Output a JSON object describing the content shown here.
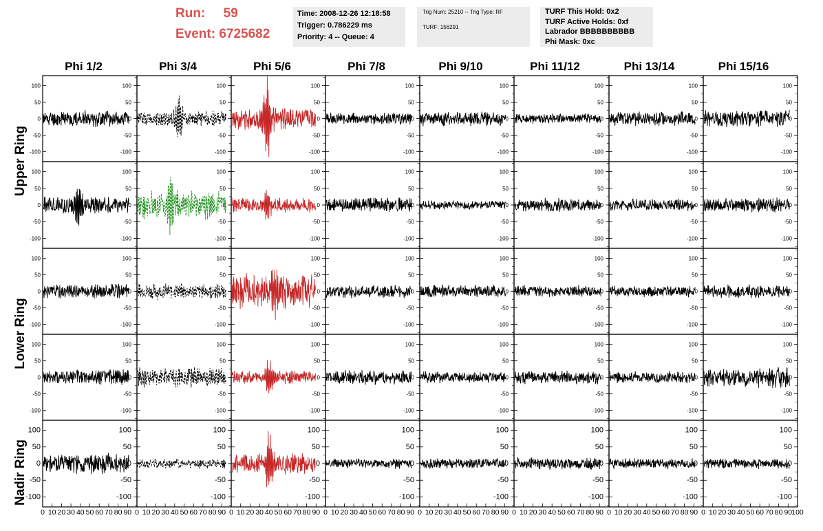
{
  "header": {
    "run_label": "Run:     59",
    "event_label": "Event: 6725682"
  },
  "info_time": {
    "time": "Time: 2008-12-26 12:18:58",
    "trigger": "Trigger: 0.786229 ms",
    "priority": "Priority: 4 -- Queue: 4"
  },
  "info_trig": {
    "trig": "Trig Num: 25210 -- Trig Type: RF",
    "turf": "TURF: 156291"
  },
  "info_turf": {
    "hold": "TURF This Hold: 0x2",
    "active": "TURF Active Holds: 0xf",
    "labrador": "Labrador BBBBBBBBBB",
    "phimask": "Phi Mask: 0xc"
  },
  "columns": [
    "Phi 1/2",
    "Phi 3/4",
    "Phi 5/6",
    "Phi 7/8",
    "Phi 9/10",
    "Phi 11/12",
    "Phi 13/14",
    "Phi 15/16"
  ],
  "rows": [
    "Upper Ring",
    "Lower Ring",
    "Nadir Ring"
  ],
  "colors": {
    "normal": "#000000",
    "triggered_phi": "#c62828",
    "dashed": "#000000",
    "green": "#1a8f1a"
  },
  "chart_data": {
    "type": "line",
    "description_axes": "small multiples grid of waveforms, 5 panel rows x 8 columns",
    "ylim": [
      -130,
      130
    ],
    "xlim": [
      0,
      100
    ],
    "yticks": [
      -100,
      -50,
      0,
      50,
      100
    ],
    "xticks": [
      0,
      10,
      20,
      30,
      40,
      50,
      60,
      70,
      80,
      90,
      100
    ],
    "xtick_labels_bottom": "0 10 20 30 40 50 60 70 80 90 10",
    "last_xtick_label": "100",
    "panel_rows": [
      {
        "row_index": 0,
        "ring": "Upper Ring"
      },
      {
        "row_index": 1,
        "ring": "Upper Ring"
      },
      {
        "row_index": 2,
        "ring": "Lower Ring"
      },
      {
        "row_index": 3,
        "ring": "Lower Ring"
      },
      {
        "row_index": 4,
        "ring": "Nadir Ring"
      }
    ],
    "panels": [
      {
        "row": 0,
        "col": 0,
        "style": "normal",
        "amp": 22,
        "seed": 11,
        "pulse": 0
      },
      {
        "row": 0,
        "col": 1,
        "style": "dashed",
        "amp": 22,
        "seed": 12,
        "pulse": 55,
        "pulse_x": 45,
        "xmax": 95
      },
      {
        "row": 0,
        "col": 2,
        "style": "triggered_phi",
        "amp": 30,
        "seed": 13,
        "pulse": 120,
        "pulse_x": 38,
        "xmax": 90
      },
      {
        "row": 0,
        "col": 3,
        "style": "normal",
        "amp": 16,
        "seed": 14,
        "pulse": 0
      },
      {
        "row": 0,
        "col": 4,
        "style": "normal",
        "amp": 20,
        "seed": 15,
        "pulse": 0
      },
      {
        "row": 0,
        "col": 5,
        "style": "normal",
        "amp": 14,
        "seed": 16,
        "pulse": 0
      },
      {
        "row": 0,
        "col": 6,
        "style": "normal",
        "amp": 20,
        "seed": 17,
        "pulse": 0
      },
      {
        "row": 0,
        "col": 7,
        "style": "normal",
        "amp": 24,
        "seed": 18,
        "pulse": 0
      },
      {
        "row": 1,
        "col": 0,
        "style": "normal",
        "amp": 24,
        "seed": 21,
        "pulse": 55,
        "pulse_x": 38
      },
      {
        "row": 1,
        "col": 1,
        "style": "green",
        "amp": 40,
        "seed": 22,
        "pulse": 85,
        "pulse_x": 35,
        "xmax": 95
      },
      {
        "row": 1,
        "col": 2,
        "style": "triggered_phi",
        "amp": 22,
        "seed": 23,
        "pulse": 45,
        "pulse_x": 38,
        "xmax": 90
      },
      {
        "row": 1,
        "col": 3,
        "style": "normal",
        "amp": 20,
        "seed": 24,
        "pulse": 0
      },
      {
        "row": 1,
        "col": 4,
        "style": "normal",
        "amp": 12,
        "seed": 25,
        "pulse": 0
      },
      {
        "row": 1,
        "col": 5,
        "style": "normal",
        "amp": 18,
        "seed": 26,
        "pulse": 0
      },
      {
        "row": 1,
        "col": 6,
        "style": "normal",
        "amp": 16,
        "seed": 27,
        "pulse": 0
      },
      {
        "row": 1,
        "col": 7,
        "style": "normal",
        "amp": 20,
        "seed": 28,
        "pulse": 0
      },
      {
        "row": 2,
        "col": 0,
        "style": "normal",
        "amp": 20,
        "seed": 31,
        "pulse": 0
      },
      {
        "row": 2,
        "col": 1,
        "style": "dashed",
        "amp": 22,
        "seed": 32,
        "pulse": 0,
        "xmax": 95
      },
      {
        "row": 2,
        "col": 2,
        "style": "triggered_phi",
        "amp": 48,
        "seed": 33,
        "pulse": 60,
        "pulse_x": 45,
        "xmax": 90
      },
      {
        "row": 2,
        "col": 3,
        "style": "normal",
        "amp": 18,
        "seed": 34,
        "pulse": 0
      },
      {
        "row": 2,
        "col": 4,
        "style": "normal",
        "amp": 18,
        "seed": 35,
        "pulse": 0
      },
      {
        "row": 2,
        "col": 5,
        "style": "normal",
        "amp": 16,
        "seed": 36,
        "pulse": 0
      },
      {
        "row": 2,
        "col": 6,
        "style": "normal",
        "amp": 16,
        "seed": 37,
        "pulse": 0
      },
      {
        "row": 2,
        "col": 7,
        "style": "normal",
        "amp": 18,
        "seed": 38,
        "pulse": 0
      },
      {
        "row": 3,
        "col": 0,
        "style": "normal",
        "amp": 22,
        "seed": 41,
        "pulse": 0
      },
      {
        "row": 3,
        "col": 1,
        "style": "dashed",
        "amp": 28,
        "seed": 42,
        "pulse": 0,
        "xmax": 95
      },
      {
        "row": 3,
        "col": 2,
        "style": "triggered_phi",
        "amp": 18,
        "seed": 43,
        "pulse": 55,
        "pulse_x": 40,
        "xmax": 90
      },
      {
        "row": 3,
        "col": 3,
        "style": "normal",
        "amp": 20,
        "seed": 44,
        "pulse": 0
      },
      {
        "row": 3,
        "col": 4,
        "style": "normal",
        "amp": 16,
        "seed": 45,
        "pulse": 0
      },
      {
        "row": 3,
        "col": 5,
        "style": "normal",
        "amp": 18,
        "seed": 46,
        "pulse": 0
      },
      {
        "row": 3,
        "col": 6,
        "style": "normal",
        "amp": 16,
        "seed": 47,
        "pulse": 0
      },
      {
        "row": 3,
        "col": 7,
        "style": "normal",
        "amp": 28,
        "seed": 48,
        "pulse": 0
      },
      {
        "row": 4,
        "col": 0,
        "style": "normal",
        "amp": 28,
        "seed": 51,
        "pulse": 0
      },
      {
        "row": 4,
        "col": 1,
        "style": "dashed",
        "amp": 14,
        "seed": 52,
        "pulse": 0,
        "xmax": 95
      },
      {
        "row": 4,
        "col": 2,
        "style": "triggered_phi",
        "amp": 28,
        "seed": 53,
        "pulse": 80,
        "pulse_x": 40,
        "xmax": 90
      },
      {
        "row": 4,
        "col": 3,
        "style": "normal",
        "amp": 14,
        "seed": 54,
        "pulse": 0
      },
      {
        "row": 4,
        "col": 4,
        "style": "normal",
        "amp": 14,
        "seed": 55,
        "pulse": 0
      },
      {
        "row": 4,
        "col": 5,
        "style": "normal",
        "amp": 16,
        "seed": 56,
        "pulse": 0
      },
      {
        "row": 4,
        "col": 6,
        "style": "normal",
        "amp": 14,
        "seed": 57,
        "pulse": 0
      },
      {
        "row": 4,
        "col": 7,
        "style": "normal",
        "amp": 14,
        "seed": 58,
        "pulse": 0
      }
    ]
  }
}
